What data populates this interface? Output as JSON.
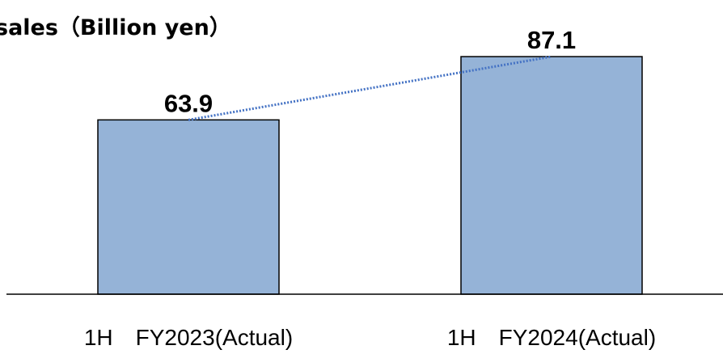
{
  "chart_data": {
    "type": "bar",
    "title": "sales（Billion yen）",
    "categories": [
      "1H　FY2023(Actual)",
      "1H　FY2024(Actual)"
    ],
    "values": [
      63.9,
      87.1
    ],
    "data_labels": [
      "63.9",
      "87.1"
    ],
    "xlabel": "",
    "ylabel": "",
    "ylim": [
      0,
      100
    ],
    "grid": false,
    "trend_line": true,
    "colors": {
      "bar_fill": "#95B3D7",
      "bar_stroke": "#000000",
      "trend_line": "#4472C4",
      "axis": "#000000"
    }
  }
}
